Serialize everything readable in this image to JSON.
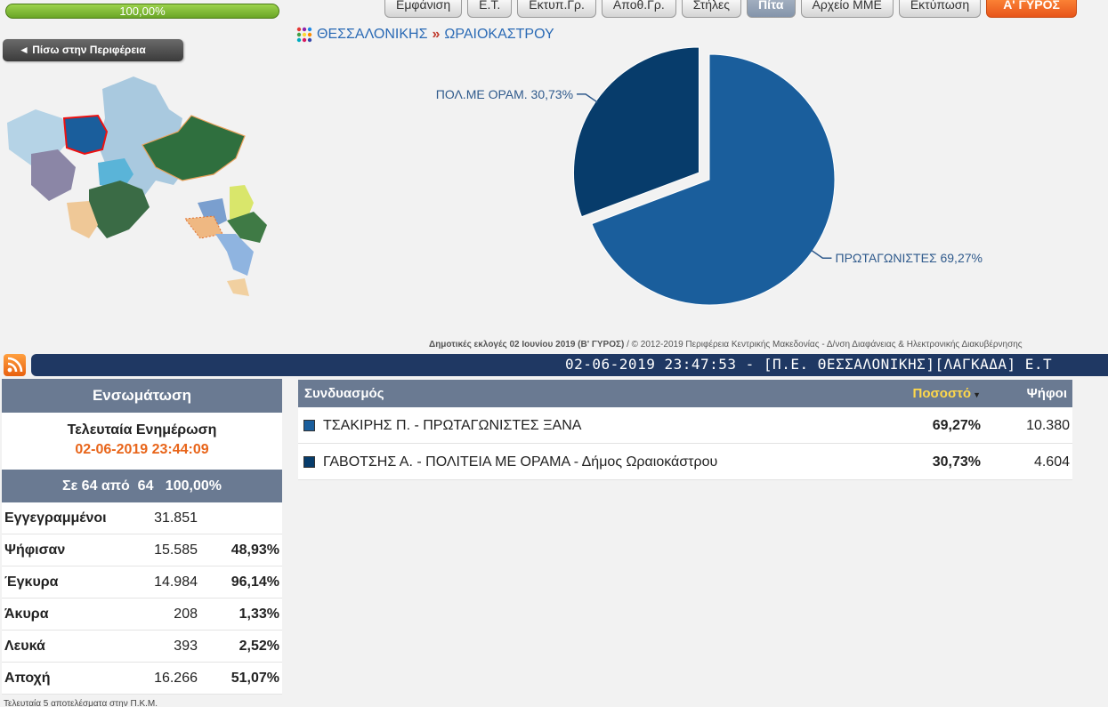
{
  "progress": {
    "text": "100,00%",
    "value": 1.0
  },
  "toolbar": [
    {
      "label": "Εμφάνιση",
      "active": false
    },
    {
      "label": "Ε.Τ.",
      "active": false
    },
    {
      "label": "Εκτυπ.Γρ.",
      "active": false
    },
    {
      "label": "Αποθ.Γρ.",
      "active": false
    },
    {
      "label": "Στήλες",
      "active": false
    },
    {
      "label": "Πίτα",
      "active": true
    },
    {
      "label": "Αρχείο ΜΜΕ",
      "active": false
    },
    {
      "label": "Εκτύπωση",
      "active": false
    }
  ],
  "round_button": "Α' ΓΥΡΟΣ",
  "back_button": "◄ Πίσω στην Περιφέρεια",
  "breadcrumb": {
    "level1": "ΘΕΣΣΑΛΟΝΙΚΗΣ",
    "separator": "»",
    "level2": "ΩΡΑΙΟΚΑΣΤΡΟΥ"
  },
  "chart_data": {
    "type": "pie",
    "slices": [
      {
        "label": "ΠΡΩΤΑΓΩΝΙΣΤΕΣ 69,27%",
        "value": 69.27,
        "color": "#1a5e9c"
      },
      {
        "label": "ΠΟΛ.ΜΕ ΟΡΑΜ. 30,73%",
        "value": 30.73,
        "color": "#073c6b",
        "exploded": true
      }
    ]
  },
  "footer": {
    "election": "Δημοτικές εκλογές 02 Ιουνίου 2019 (Β' ΓΥΡΟΣ)",
    "credit": " / © 2012-2019 Περιφέρεια Κεντρικής Μακεδονίας - Δ/νση Διαφάνειας & Ηλεκτρονικής Διακυβέρνησης"
  },
  "ticker": "02-06-2019 23:47:53 - [Π.Ε. ΘΕΣΣΑΛΟΝΙΚΗΣ][ΛΑΓΚΑΔΑ] Ε.Τ",
  "stats": {
    "title": "Ενσωμάτωση",
    "last_update_label": "Τελευταία Ενημέρωση",
    "last_update_time": "02-06-2019 23:44:09",
    "progress_text": "Σε 64 από  64   100,00%",
    "rows": [
      {
        "label": "Εγγεγραμμένοι",
        "value": "31.851",
        "pct": ""
      },
      {
        "label": "Ψήφισαν",
        "value": "15.585",
        "pct": "48,93%"
      },
      {
        "label": "Έγκυρα",
        "value": "14.984",
        "pct": "96,14%"
      },
      {
        "label": "Άκυρα",
        "value": "208",
        "pct": "1,33%"
      },
      {
        "label": "Λευκά",
        "value": "393",
        "pct": "2,52%"
      },
      {
        "label": "Αποχή",
        "value": "16.266",
        "pct": "51,07%"
      }
    ]
  },
  "results": {
    "headers": {
      "name": "Συνδυασμός",
      "pct": "Ποσοστό",
      "votes": "Ψήφοι"
    },
    "rows": [
      {
        "name": "ΤΣΑΚΙΡΗΣ Π. - ΠΡΩΤΑΓΩΝΙΣΤΕΣ ΞΑΝΑ",
        "pct": "69,27%",
        "votes": "10.380",
        "color": "#1a5e9c"
      },
      {
        "name": "ΓΑΒΟΤΣΗΣ Α. - ΠΟΛΙΤΕΙΑ ΜΕ ΟΡΑΜΑ - Δήμος Ωραιοκάστρου",
        "pct": "30,73%",
        "votes": "4.604",
        "color": "#073c6b"
      }
    ]
  },
  "bottom_note": "Τελευταία 5 αποτελέσματα στην Π.Κ.Μ."
}
